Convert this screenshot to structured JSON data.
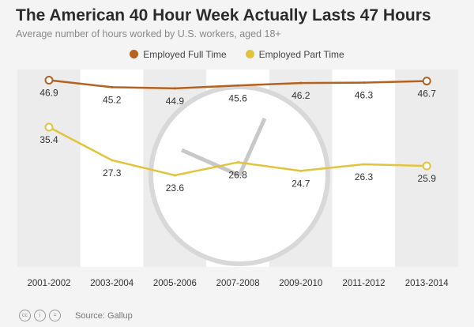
{
  "title": "The American 40 Hour Week Actually Lasts 47 Hours",
  "subtitle": "Average number of hours worked by U.S. workers, aged 18+",
  "source": "Source: Gallup",
  "license_icons": [
    "cc",
    "by",
    "nd"
  ],
  "chart_data": {
    "type": "line",
    "title": "The American 40 Hour Week Actually Lasts 47 Hours",
    "categories": [
      "2001-2002",
      "2003-2004",
      "2005-2006",
      "2007-2008",
      "2009-2010",
      "2011-2012",
      "2013-2014"
    ],
    "series": [
      {
        "name": "Employed Full Time",
        "color": "#b5611f",
        "values": [
          46.9,
          45.2,
          44.9,
          45.6,
          46.2,
          46.3,
          46.7
        ]
      },
      {
        "name": "Employed Part Time",
        "color": "#e2c43c",
        "values": [
          35.4,
          27.3,
          23.6,
          26.8,
          24.7,
          26.3,
          25.9
        ]
      }
    ],
    "legend": "top-center",
    "grid": false
  }
}
